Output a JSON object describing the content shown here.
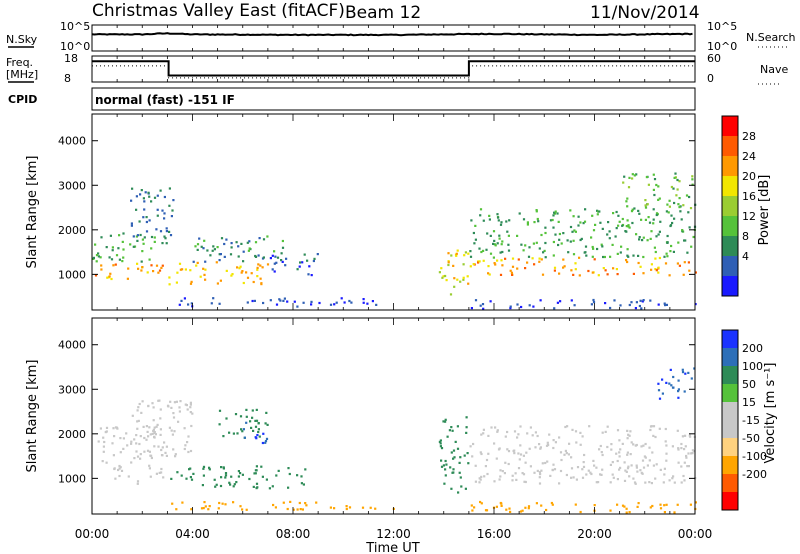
{
  "header": {
    "station": "Christmas Valley East (fitACF)",
    "beam": "Beam 12",
    "date": "11/Nov/2014"
  },
  "strip": {
    "nsky_label": "N.Sky",
    "nsky_ticks": [
      "10^5",
      "10^0"
    ],
    "nsearch_label": "N.Search",
    "nsearch_ticks": [
      "10^5",
      "10^0"
    ],
    "freq_label_1": "Freq.",
    "freq_label_2": "[MHz]",
    "freq_ticks": [
      "18",
      "8"
    ],
    "nave_label": "Nave",
    "nave_ticks": [
      "60",
      "0"
    ],
    "cpid_label": "CPID",
    "cpid_value": "normal (fast) -151 IF"
  },
  "colors": {
    "power_scale": [
      "#1a1aff",
      "#2f5fb5",
      "#2e8b57",
      "#55c23a",
      "#9acd32",
      "#f2e600",
      "#ff9900",
      "#ff5a00",
      "#ff0000"
    ],
    "velocity_scale": [
      "#1a33ff",
      "#2d6fb8",
      "#2e8b57",
      "#55c23a",
      "#c8c8c8",
      "#c8c8c8",
      "#ffd27f",
      "#ffa500",
      "#ff5a00",
      "#ff0000"
    ]
  },
  "chart_data": [
    {
      "type": "line",
      "panel": "nsky",
      "x": [
        0,
        2,
        3,
        4,
        8,
        12,
        16,
        20,
        24
      ],
      "series": [
        {
          "name": "N.Sky",
          "values": [
            3.2,
            3.2,
            3.4,
            3.2,
            3.1,
            3.1,
            3.3,
            3.1,
            3.3
          ]
        }
      ]
    },
    {
      "type": "line",
      "panel": "freq",
      "x": [
        0,
        3.05,
        3.05,
        15,
        15,
        24
      ],
      "series": [
        {
          "name": "Freq.",
          "values": [
            16,
            16,
            10.5,
            10.5,
            16,
            16
          ]
        }
      ]
    },
    {
      "type": "heatmap",
      "panel": "power",
      "xlabel": "Time UT",
      "ylabel": "Slant Range [km]",
      "xlim": [
        0,
        24
      ],
      "ylim": [
        200,
        4600
      ],
      "x_ticks": [
        "00:00",
        "04:00",
        "08:00",
        "12:00",
        "16:00",
        "20:00",
        "00:00"
      ],
      "y_ticks": [
        1000,
        2000,
        3000,
        4000
      ],
      "colorbar_label": "Power [dB]",
      "colorbar_ticks": [
        "4",
        "8",
        "12",
        "16",
        "20",
        "24",
        "28"
      ],
      "features": [
        {
          "t0": 0.0,
          "t1": 2.8,
          "r0": 900,
          "r1": 1300,
          "level": 26
        },
        {
          "t0": 0.0,
          "t1": 2.5,
          "r0": 1300,
          "r1": 2000,
          "level": 12
        },
        {
          "t0": 1.5,
          "t1": 3.2,
          "r0": 1700,
          "r1": 3000,
          "level": 8
        },
        {
          "t0": 3.0,
          "t1": 7.0,
          "r0": 800,
          "r1": 1300,
          "level": 24
        },
        {
          "t0": 4.0,
          "t1": 7.8,
          "r0": 1300,
          "r1": 1900,
          "level": 10
        },
        {
          "t0": 7.0,
          "t1": 9.0,
          "r0": 1000,
          "r1": 1500,
          "level": 6
        },
        {
          "t0": 3.0,
          "t1": 11.5,
          "r0": 300,
          "r1": 500,
          "level": 4
        },
        {
          "t0": 13.8,
          "t1": 15.0,
          "r0": 500,
          "r1": 1600,
          "level": 22
        },
        {
          "t0": 15.0,
          "t1": 24.0,
          "r0": 1000,
          "r1": 1400,
          "level": 26
        },
        {
          "t0": 15.0,
          "t1": 24.0,
          "r0": 1400,
          "r1": 2500,
          "level": 12
        },
        {
          "t0": 15.0,
          "t1": 24.0,
          "r0": 250,
          "r1": 450,
          "level": 4
        },
        {
          "t0": 21.0,
          "t1": 24.0,
          "r0": 2500,
          "r1": 3300,
          "level": 14
        }
      ]
    },
    {
      "type": "heatmap",
      "panel": "velocity",
      "xlabel": "Time UT",
      "ylabel": "Slant Range [km]",
      "xlim": [
        0,
        24
      ],
      "ylim": [
        200,
        4600
      ],
      "x_ticks": [
        "00:00",
        "04:00",
        "08:00",
        "12:00",
        "16:00",
        "20:00",
        "00:00"
      ],
      "y_ticks": [
        1000,
        2000,
        3000,
        4000
      ],
      "colorbar_label": "Velocity [m s⁻¹]",
      "colorbar_ticks": [
        "200",
        "100",
        "50",
        "15",
        "-15",
        "-50",
        "-100",
        "-200"
      ],
      "features": [
        {
          "t0": 0.2,
          "t1": 2.8,
          "r0": 900,
          "r1": 2200,
          "level": 0
        },
        {
          "t0": 1.5,
          "t1": 4.0,
          "r0": 1500,
          "r1": 2800,
          "level": 0
        },
        {
          "t0": 3.0,
          "t1": 8.5,
          "r0": 800,
          "r1": 1300,
          "level": 60
        },
        {
          "t0": 5.0,
          "t1": 7.0,
          "r0": 1900,
          "r1": 2600,
          "level": 50
        },
        {
          "t0": 6.0,
          "t1": 7.0,
          "r0": 1800,
          "r1": 2300,
          "level": 150
        },
        {
          "t0": 3.0,
          "t1": 12.0,
          "r0": 300,
          "r1": 500,
          "level": -40
        },
        {
          "t0": 13.8,
          "t1": 15.0,
          "r0": 700,
          "r1": 2400,
          "level": 40
        },
        {
          "t0": 15.0,
          "t1": 24.0,
          "r0": 900,
          "r1": 2200,
          "level": 0
        },
        {
          "t0": 15.0,
          "t1": 24.0,
          "r0": 250,
          "r1": 500,
          "level": -40
        },
        {
          "t0": 22.5,
          "t1": 24.0,
          "r0": 2800,
          "r1": 3500,
          "level": 150
        }
      ]
    }
  ]
}
